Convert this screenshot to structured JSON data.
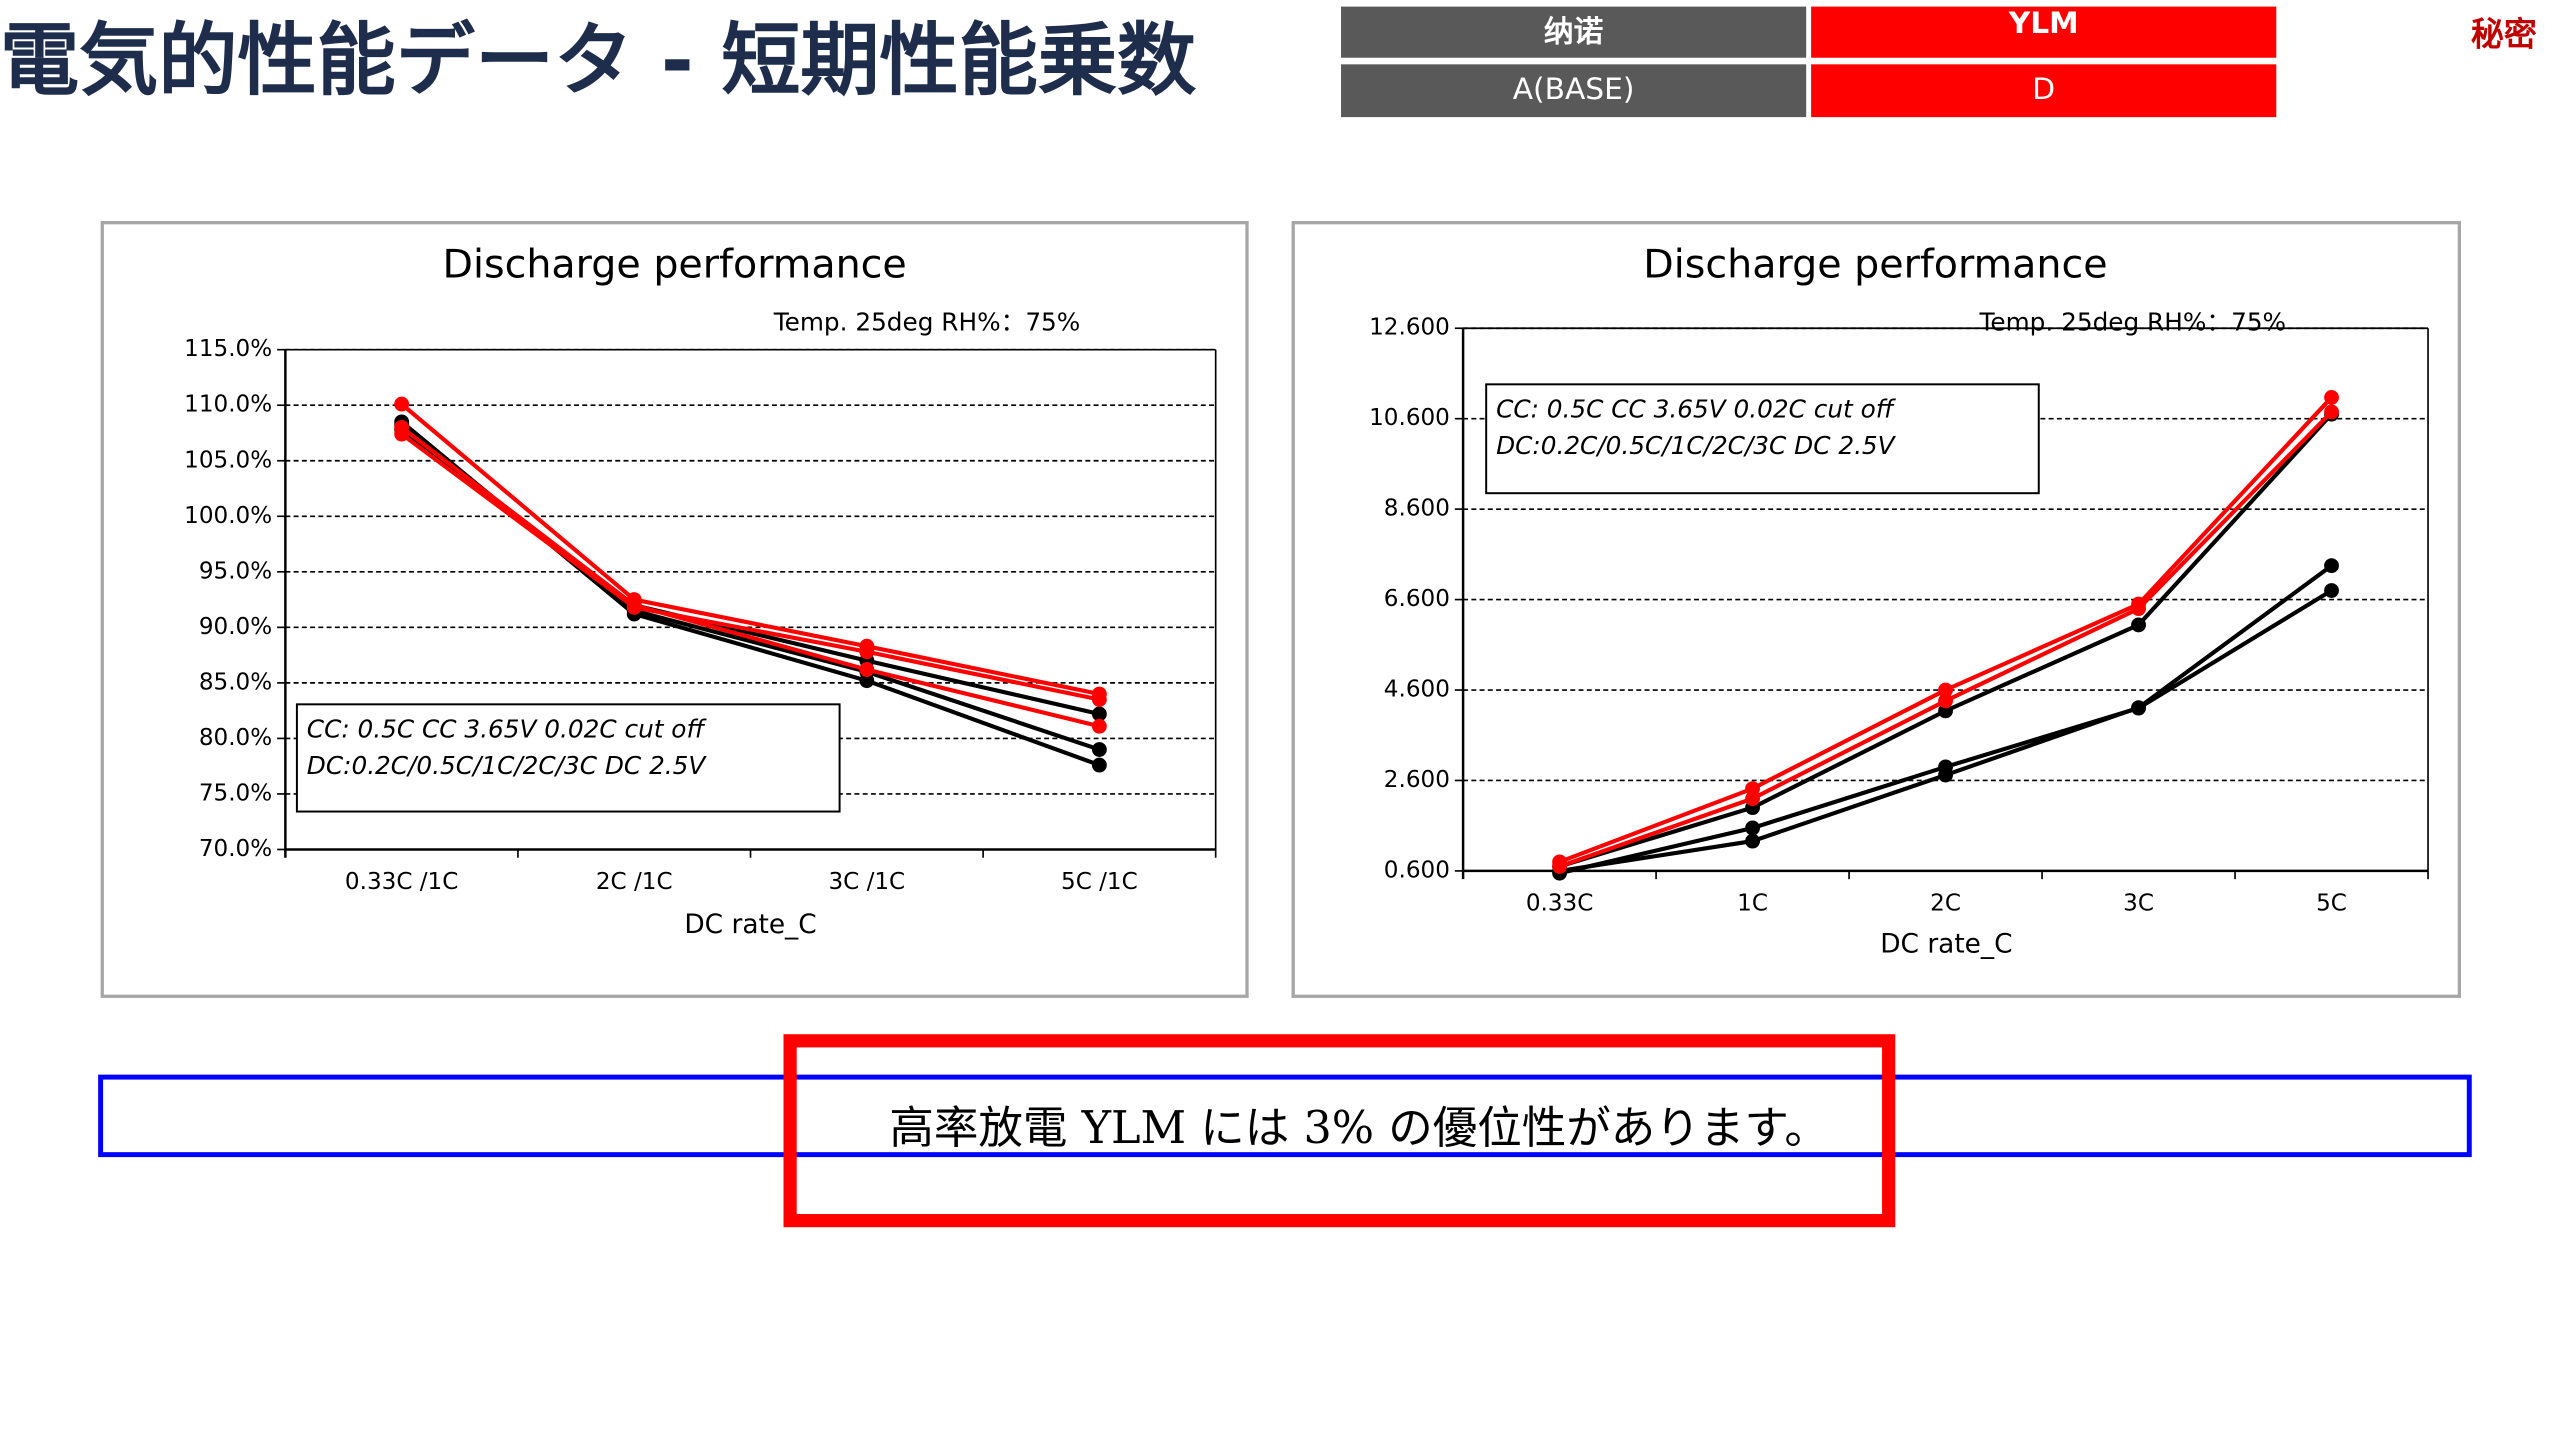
{
  "header": {
    "title": "電気的性能データ - 短期性能乗数",
    "confidential": "秘密"
  },
  "table": {
    "rows": [
      [
        "纳诺",
        "YLM"
      ],
      [
        "A(BASE)",
        "D"
      ]
    ]
  },
  "chart_data": [
    {
      "type": "line",
      "title": "Discharge performance",
      "subtitle": "Temp.  25deg  RH%：75%",
      "annotations": [
        "CC: 0.5C CC 3.65V 0.02C cut off",
        "DC:0.2C/0.5C/1C/2C/3C DC 2.5V"
      ],
      "xlabel": "DC rate_C",
      "categories": [
        "0.33C /1C",
        "2C /1C",
        "3C /1C",
        "5C /1C"
      ],
      "series": [
        {
          "color": "#000000",
          "values": [
            108.5,
            91.2,
            85.2,
            77.6
          ]
        },
        {
          "color": "#000000",
          "values": [
            107.8,
            92.0,
            87.0,
            82.2
          ]
        },
        {
          "color": "#000000",
          "values": [
            108.2,
            91.5,
            86.0,
            79.0
          ]
        },
        {
          "color": "#ff0000",
          "values": [
            110.1,
            92.5,
            88.3,
            84.0
          ]
        },
        {
          "color": "#ff0000",
          "values": [
            107.4,
            91.8,
            87.8,
            83.5
          ]
        },
        {
          "color": "#ff0000",
          "values": [
            108.0,
            92.0,
            86.2,
            81.1
          ]
        }
      ],
      "ylim": [
        70,
        115
      ],
      "yticks": [
        {
          "value": 70,
          "label": "70.0%"
        },
        {
          "value": 75,
          "label": "75.0%"
        },
        {
          "value": 80,
          "label": "80.0%"
        },
        {
          "value": 85,
          "label": "85.0%"
        },
        {
          "value": 90,
          "label": "90.0%"
        },
        {
          "value": 95,
          "label": "95.0%"
        },
        {
          "value": 100,
          "label": "100.0%"
        },
        {
          "value": 105,
          "label": "105.0%"
        },
        {
          "value": 110,
          "label": "110.0%"
        },
        {
          "value": 115,
          "label": "115.0%"
        }
      ],
      "grid": true
    },
    {
      "type": "line",
      "title": "Discharge performance",
      "subtitle": "Temp.  25deg  RH%：75%",
      "annotations": [
        "CC: 0.5C CC 3.65V 0.02C cut off",
        "DC:0.2C/0.5C/1C/2C/3C DC 2.5V"
      ],
      "xlabel": "DC rate_C",
      "categories": [
        "0.33C",
        "1C",
        "2C",
        "3C",
        "5C"
      ],
      "series": [
        {
          "color": "#000000",
          "values": [
            0.7,
            2.0,
            4.14,
            6.04,
            10.7
          ]
        },
        {
          "color": "#000000",
          "values": [
            0.6,
            1.26,
            2.72,
            4.21,
            7.35
          ]
        },
        {
          "color": "#000000",
          "values": [
            0.55,
            1.55,
            2.9,
            4.2,
            6.8
          ]
        },
        {
          "color": "#ff0000",
          "values": [
            0.8,
            2.42,
            4.6,
            6.5,
            11.07
          ]
        },
        {
          "color": "#ff0000",
          "values": [
            0.7,
            2.2,
            4.36,
            6.4,
            10.75
          ]
        }
      ],
      "ylim": [
        0.6,
        12.6
      ],
      "yticks": [
        {
          "value": 0.6,
          "label": "0.600"
        },
        {
          "value": 2.6,
          "label": "2.600"
        },
        {
          "value": 4.6,
          "label": "4.600"
        },
        {
          "value": 6.6,
          "label": "6.600"
        },
        {
          "value": 8.6,
          "label": "8.600"
        },
        {
          "value": 10.6,
          "label": "10.600"
        },
        {
          "value": 12.6,
          "label": "12.600"
        }
      ],
      "grid": true
    }
  ],
  "note": "高率放電 YLM には 3% の優位性があります。"
}
